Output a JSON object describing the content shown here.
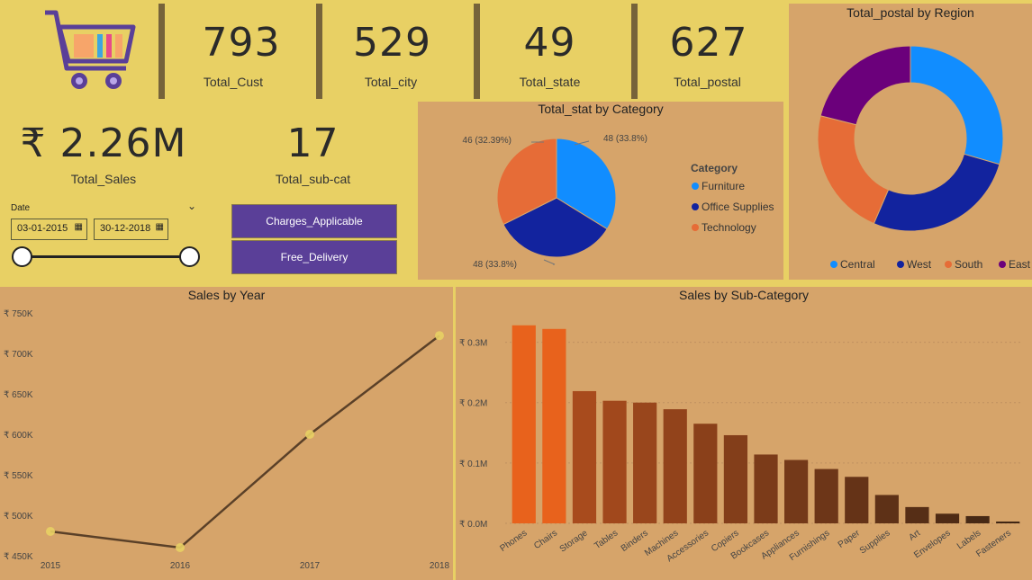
{
  "kpis": {
    "total_cust": {
      "value": "793",
      "label": "Total_Cust"
    },
    "total_city": {
      "value": "529",
      "label": "Total_city"
    },
    "total_state": {
      "value": "49",
      "label": "Total_state"
    },
    "total_postal": {
      "value": "627",
      "label": "Total_postal"
    },
    "total_sales": {
      "value": "₹ 2.26M",
      "label": "Total_Sales"
    },
    "total_subcat": {
      "value": "17",
      "label": "Total_sub-cat"
    }
  },
  "date_filter": {
    "title": "Date",
    "start": "03-01-2015",
    "end": "30-12-2018"
  },
  "buttons": {
    "charges": "Charges_Applicable",
    "delivery": "Free_Delivery"
  },
  "colors": {
    "central": "#118dff",
    "west": "#12239e",
    "south": "#e66c37",
    "east": "#6b007b",
    "bar_hi": "#e8621c",
    "bar_mid": "#a84b1d",
    "line": "#5a4028",
    "marker": "#e8d064"
  },
  "chart_data": [
    {
      "type": "pie",
      "title": "Total_stat by Category",
      "legend_title": "Category",
      "legend_position": "right",
      "categories": [
        "Furniture",
        "Office Supplies",
        "Technology"
      ],
      "values": [
        48,
        48,
        46
      ],
      "labels": [
        "48 (33.8%)",
        "48 (33.8%)",
        "46 (32.39%)"
      ]
    },
    {
      "type": "pie",
      "donut": true,
      "title": "Total_postal by Region",
      "legend_position": "bottom",
      "categories": [
        "Central",
        "West",
        "South",
        "East"
      ],
      "values": [
        185,
        169,
        141,
        132
      ]
    },
    {
      "type": "line",
      "title": "Sales by Year",
      "x": [
        "2015",
        "2016",
        "2017",
        "2018"
      ],
      "values": [
        480000,
        460000,
        600000,
        722000
      ],
      "ylim": [
        450000,
        750000
      ],
      "y_ticks": [
        450000,
        500000,
        550000,
        600000,
        650000,
        700000,
        750000
      ],
      "y_tick_labels": [
        "₹ 450K",
        "₹ 500K",
        "₹ 550K",
        "₹ 600K",
        "₹ 650K",
        "₹ 700K",
        "₹ 750K"
      ]
    },
    {
      "type": "bar",
      "title": "Sales by Sub-Category",
      "categories": [
        "Phones",
        "Chairs",
        "Storage",
        "Tables",
        "Binders",
        "Machines",
        "Accessories",
        "Copiers",
        "Bookcases",
        "Appliances",
        "Furnishings",
        "Paper",
        "Supplies",
        "Art",
        "Envelopes",
        "Labels",
        "Fasteners"
      ],
      "values": [
        0.328,
        0.322,
        0.219,
        0.203,
        0.2,
        0.189,
        0.165,
        0.146,
        0.114,
        0.105,
        0.09,
        0.077,
        0.047,
        0.027,
        0.016,
        0.012,
        0.003
      ],
      "ylim": [
        0,
        0.35
      ],
      "y_ticks": [
        0,
        0.1,
        0.2,
        0.3
      ],
      "y_tick_labels": [
        "₹ 0.0M",
        "₹ 0.1M",
        "₹ 0.2M",
        "₹ 0.3M"
      ]
    }
  ]
}
